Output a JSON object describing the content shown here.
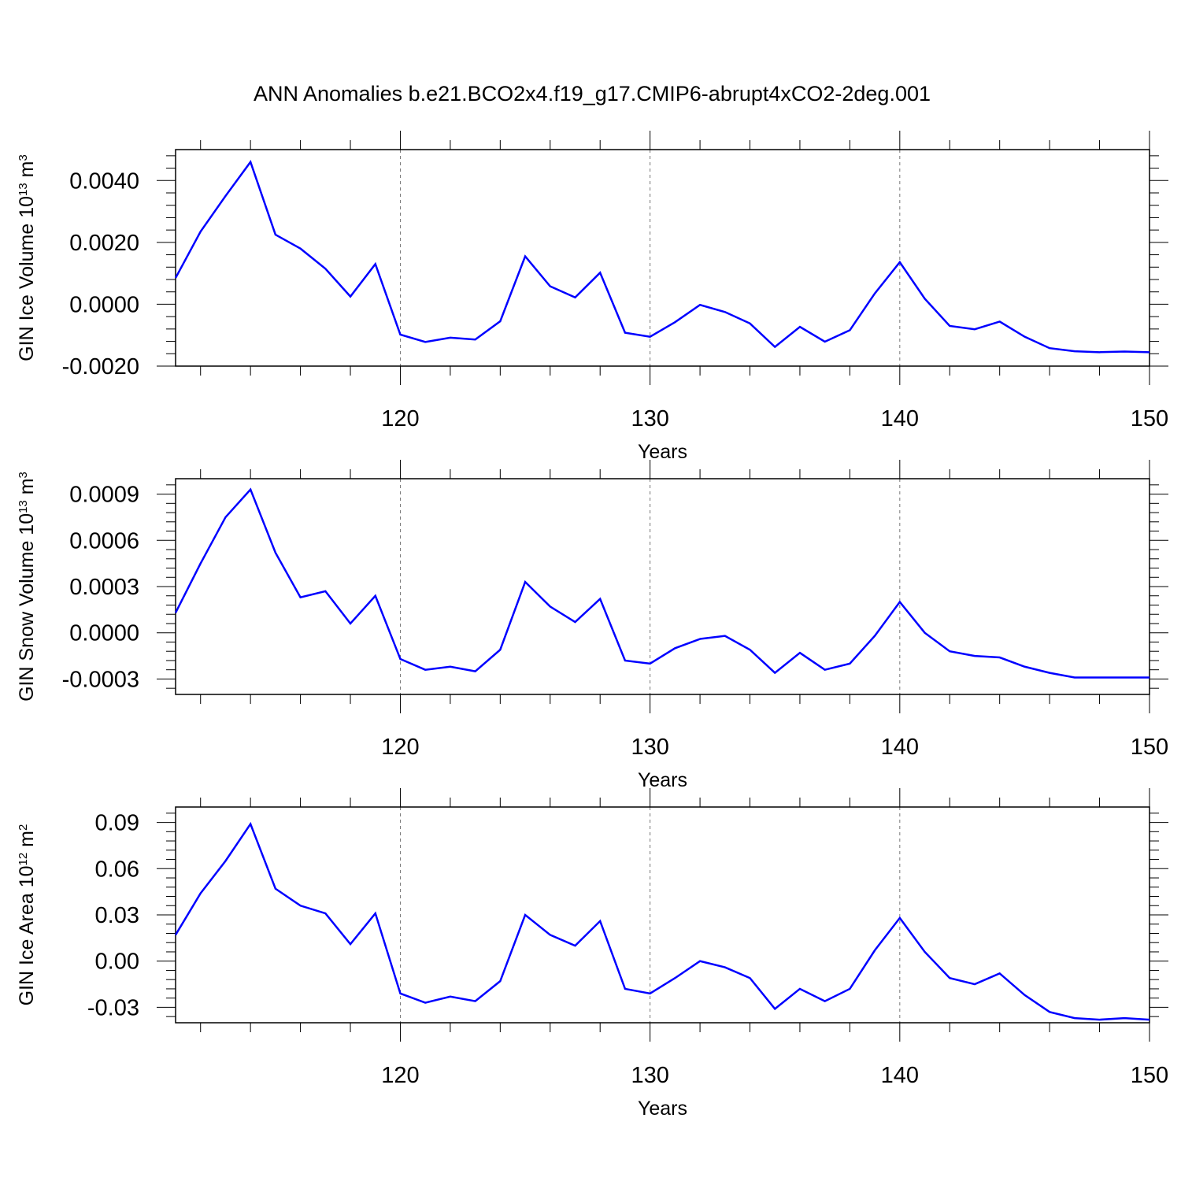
{
  "title": "ANN Anomalies b.e21.BCO2x4.f19_g17.CMIP6-abrupt4xCO2-2deg.001",
  "line_color": "#0000ff",
  "chart_data": [
    {
      "type": "line",
      "title": "",
      "xlabel": "Years",
      "ylabel": {
        "main": "GIN Ice Volume 10",
        "exp": "13",
        "unit": " m",
        "unit_exp": "3"
      },
      "xlim": [
        111,
        150
      ],
      "ylim": [
        -0.002,
        0.005
      ],
      "xticks": [
        120,
        130,
        140,
        150
      ],
      "yticks": [
        -0.002,
        0.0,
        0.002,
        0.004
      ],
      "ytick_labels": [
        "-0.0020",
        "0.0000",
        "0.0020",
        "0.0040"
      ],
      "grid": "dashed vertical at major x ticks",
      "series": [
        {
          "x": [
            111,
            112,
            113,
            114,
            115,
            116,
            117,
            118,
            119,
            120,
            121,
            122,
            123,
            124,
            125,
            126,
            127,
            128,
            129,
            130,
            131,
            132,
            133,
            134,
            135,
            136,
            137,
            138,
            139,
            140,
            141,
            142,
            143,
            144,
            145,
            146,
            147,
            148,
            149,
            150
          ],
          "values": [
            0.00085,
            0.00235,
            0.0035,
            0.0046,
            0.00225,
            0.0018,
            0.00115,
            0.00025,
            0.0013,
            -0.00098,
            -0.00122,
            -0.00108,
            -0.00114,
            -0.00055,
            0.00155,
            0.00058,
            0.00022,
            0.00102,
            -0.00092,
            -0.00105,
            -0.00058,
            -2e-05,
            -0.00025,
            -0.00062,
            -0.00138,
            -0.00073,
            -0.00121,
            -0.00084,
            0.00035,
            0.00136,
            0.00018,
            -0.0007,
            -0.00081,
            -0.00056,
            -0.00105,
            -0.00142,
            -0.00152,
            -0.00155,
            -0.00153,
            -0.00155
          ]
        }
      ]
    },
    {
      "type": "line",
      "title": "",
      "xlabel": "Years",
      "ylabel": {
        "main": "GIN Snow Volume 10",
        "exp": "13",
        "unit": " m",
        "unit_exp": "3"
      },
      "xlim": [
        111,
        150
      ],
      "ylim": [
        -0.0004,
        0.001
      ],
      "xticks": [
        120,
        130,
        140,
        150
      ],
      "yticks": [
        -0.0003,
        0.0,
        0.0003,
        0.0006,
        0.0009
      ],
      "ytick_labels": [
        "-0.0003",
        "0.0000",
        "0.0003",
        "0.0006",
        "0.0009"
      ],
      "grid": "dashed vertical at major x ticks",
      "series": [
        {
          "x": [
            111,
            112,
            113,
            114,
            115,
            116,
            117,
            118,
            119,
            120,
            121,
            122,
            123,
            124,
            125,
            126,
            127,
            128,
            129,
            130,
            131,
            132,
            133,
            134,
            135,
            136,
            137,
            138,
            139,
            140,
            141,
            142,
            143,
            144,
            145,
            146,
            147,
            148,
            149,
            150
          ],
          "values": [
            0.00013,
            0.00045,
            0.00075,
            0.00093,
            0.00052,
            0.00023,
            0.00027,
            6e-05,
            0.00024,
            -0.00017,
            -0.00024,
            -0.00022,
            -0.00025,
            -0.00011,
            0.00033,
            0.00017,
            7e-05,
            0.00022,
            -0.00018,
            -0.0002,
            -0.0001,
            -4e-05,
            -2e-05,
            -0.00011,
            -0.00026,
            -0.00013,
            -0.00024,
            -0.0002,
            -2e-05,
            0.0002,
            0.0,
            -0.00012,
            -0.00015,
            -0.00016,
            -0.00022,
            -0.00026,
            -0.00029,
            -0.00029,
            -0.00029,
            -0.00029
          ]
        }
      ]
    },
    {
      "type": "line",
      "title": "",
      "xlabel": "Years",
      "ylabel": {
        "main": "GIN Ice Area 10",
        "exp": "12",
        "unit": " m",
        "unit_exp": "2"
      },
      "xlim": [
        111,
        150
      ],
      "ylim": [
        -0.04,
        0.1
      ],
      "xticks": [
        120,
        130,
        140,
        150
      ],
      "yticks": [
        -0.03,
        0.0,
        0.03,
        0.06,
        0.09
      ],
      "ytick_labels": [
        "-0.03",
        "0.00",
        "0.03",
        "0.06",
        "0.09"
      ],
      "grid": "dashed vertical at major x ticks",
      "series": [
        {
          "x": [
            111,
            112,
            113,
            114,
            115,
            116,
            117,
            118,
            119,
            120,
            121,
            122,
            123,
            124,
            125,
            126,
            127,
            128,
            129,
            130,
            131,
            132,
            133,
            134,
            135,
            136,
            137,
            138,
            139,
            140,
            141,
            142,
            143,
            144,
            145,
            146,
            147,
            148,
            149,
            150
          ],
          "values": [
            0.017,
            0.044,
            0.065,
            0.089,
            0.047,
            0.036,
            0.031,
            0.011,
            0.031,
            -0.021,
            -0.027,
            -0.023,
            -0.026,
            -0.013,
            0.03,
            0.017,
            0.01,
            0.026,
            -0.018,
            -0.021,
            -0.011,
            0.0,
            -0.004,
            -0.011,
            -0.031,
            -0.018,
            -0.026,
            -0.018,
            0.007,
            0.028,
            0.006,
            -0.011,
            -0.015,
            -0.008,
            -0.022,
            -0.033,
            -0.037,
            -0.038,
            -0.037,
            -0.038
          ]
        }
      ]
    }
  ]
}
